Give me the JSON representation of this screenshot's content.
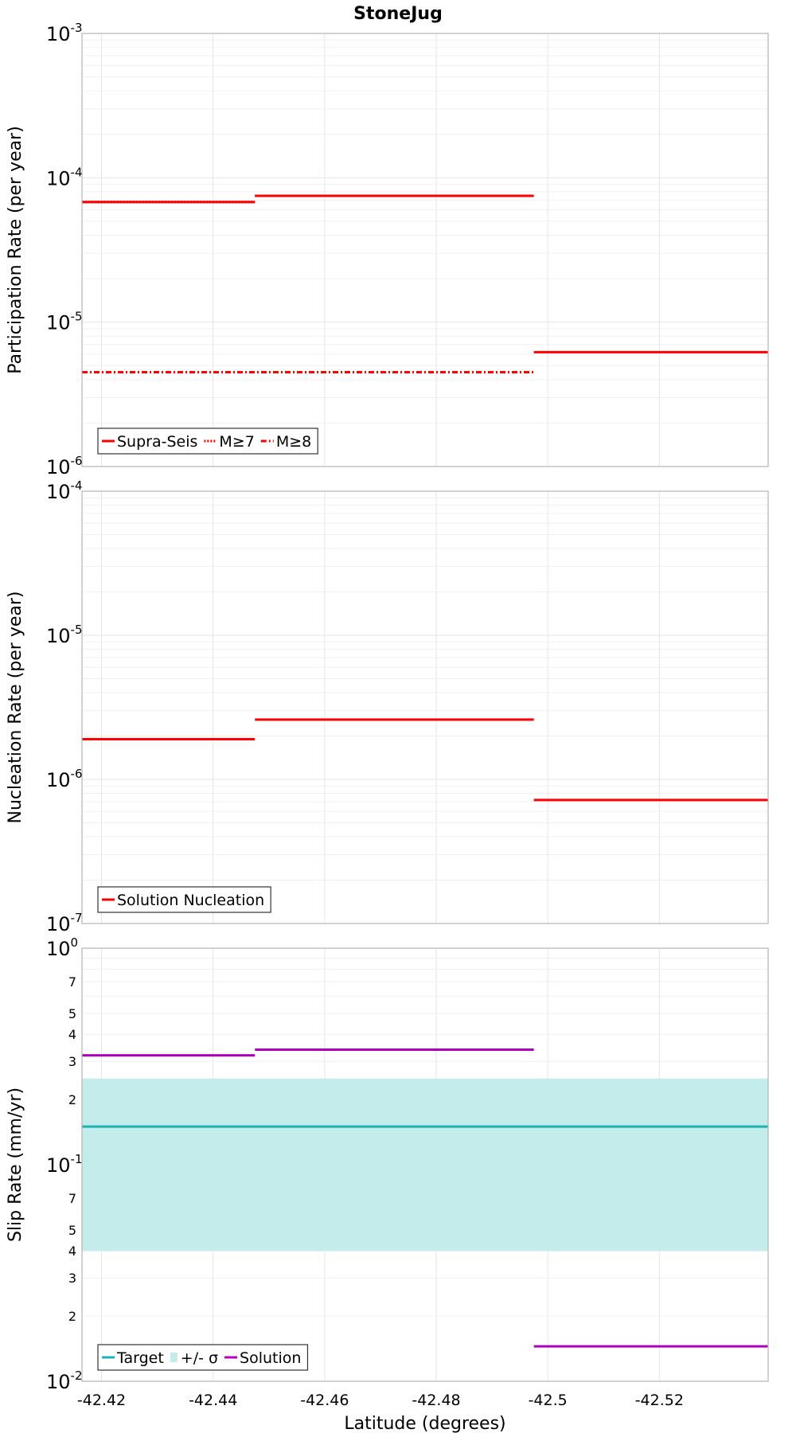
{
  "title": "StoneJug",
  "colors": {
    "red": "#ff0000",
    "cyan": "#1cb5b5",
    "band": "#c4ecea",
    "purple": "#b000b8"
  },
  "chart_data": [
    {
      "type": "line",
      "ylabel": "Participation Rate (per year)",
      "yscale": "log",
      "ylim": [
        1e-06,
        0.001
      ],
      "xlim": [
        -42.4165,
        -42.5395
      ],
      "x_reversed": true,
      "grid": true,
      "legend_position": "bottom-left",
      "yticks": [
        {
          "value": 1e-06,
          "base": "10",
          "exp": "-6"
        },
        {
          "value": 1e-05,
          "base": "10",
          "exp": "-5"
        },
        {
          "value": 0.0001,
          "base": "10",
          "exp": "-4"
        },
        {
          "value": 0.001,
          "base": "10",
          "exp": "-3"
        }
      ],
      "series": [
        {
          "name": "Supra-Seis",
          "style": "solid",
          "color": "#ff0000",
          "segments": [
            {
              "x": [
                -42.4165,
                -42.4475
              ],
              "y": 6.8e-05
            },
            {
              "x": [
                -42.4475,
                -42.4975
              ],
              "y": 7.5e-05
            },
            {
              "x": [
                -42.4975,
                -42.5395
              ],
              "y": 6.2e-06
            }
          ]
        },
        {
          "name": "M≥7",
          "style": "dotted",
          "color": "#ff0000",
          "segments": [
            {
              "x": [
                -42.4165,
                -42.4475
              ],
              "y": 6.8e-05
            },
            {
              "x": [
                -42.4475,
                -42.4975
              ],
              "y": 7.5e-05
            }
          ]
        },
        {
          "name": "M≥8",
          "style": "dashdot",
          "color": "#ff0000",
          "segments": [
            {
              "x": [
                -42.4165,
                -42.4975
              ],
              "y": 4.5e-06
            }
          ]
        }
      ]
    },
    {
      "type": "line",
      "ylabel": "Nucleation Rate (per year)",
      "yscale": "log",
      "ylim": [
        1e-07,
        0.0001
      ],
      "xlim": [
        -42.4165,
        -42.5395
      ],
      "x_reversed": true,
      "grid": true,
      "legend_position": "bottom-left",
      "yticks": [
        {
          "value": 1e-07,
          "base": "10",
          "exp": "-7"
        },
        {
          "value": 1e-06,
          "base": "10",
          "exp": "-6"
        },
        {
          "value": 1e-05,
          "base": "10",
          "exp": "-5"
        },
        {
          "value": 0.0001,
          "base": "10",
          "exp": "-4"
        }
      ],
      "series": [
        {
          "name": "Solution Nucleation",
          "style": "solid",
          "color": "#ff0000",
          "segments": [
            {
              "x": [
                -42.4165,
                -42.4475
              ],
              "y": 1.9e-06
            },
            {
              "x": [
                -42.4475,
                -42.4975
              ],
              "y": 2.6e-06
            },
            {
              "x": [
                -42.4975,
                -42.5395
              ],
              "y": 7.2e-07
            }
          ]
        }
      ]
    },
    {
      "type": "line",
      "ylabel": "Slip Rate (mm/yr)",
      "xlabel": "Latitude (degrees)",
      "yscale": "log",
      "ylim": [
        0.01,
        1
      ],
      "xlim": [
        -42.4165,
        -42.5395
      ],
      "x_reversed": true,
      "grid": true,
      "legend_position": "bottom-left",
      "yticks": [
        {
          "value": 0.01,
          "base": "10",
          "exp": "-2"
        },
        {
          "value": 0.1,
          "base": "10",
          "exp": "-1"
        },
        {
          "value": 1,
          "base": "10",
          "exp": "0"
        }
      ],
      "yminor_labels": [
        {
          "value": 0.02,
          "label": "2"
        },
        {
          "value": 0.03,
          "label": "3"
        },
        {
          "value": 0.04,
          "label": "4"
        },
        {
          "value": 0.05,
          "label": "5"
        },
        {
          "value": 0.07,
          "label": "7"
        },
        {
          "value": 0.2,
          "label": "2"
        },
        {
          "value": 0.3,
          "label": "3"
        },
        {
          "value": 0.4,
          "label": "4"
        },
        {
          "value": 0.5,
          "label": "5"
        },
        {
          "value": 0.7,
          "label": "7"
        }
      ],
      "xticks": [
        {
          "value": -42.42,
          "label": "-42.42"
        },
        {
          "value": -42.44,
          "label": "-42.44"
        },
        {
          "value": -42.46,
          "label": "-42.46"
        },
        {
          "value": -42.48,
          "label": "-42.48"
        },
        {
          "value": -42.5,
          "label": "-42.5"
        },
        {
          "value": -42.52,
          "label": "-42.52"
        }
      ],
      "band": {
        "name": "+/- σ",
        "color": "#c4ecea",
        "y_low": 0.04,
        "y_high": 0.25
      },
      "series": [
        {
          "name": "Target",
          "style": "solid",
          "color": "#1cb5b5",
          "segments": [
            {
              "x": [
                -42.4165,
                -42.5395
              ],
              "y": 0.15
            }
          ]
        },
        {
          "name": "+/- σ",
          "style": "band",
          "color": "#c4ecea",
          "segments": []
        },
        {
          "name": "Solution",
          "style": "solid",
          "color": "#b000b8",
          "segments": [
            {
              "x": [
                -42.4165,
                -42.4475
              ],
              "y": 0.32
            },
            {
              "x": [
                -42.4475,
                -42.4975
              ],
              "y": 0.34
            },
            {
              "x": [
                -42.4975,
                -42.5395
              ],
              "y": 0.0145
            }
          ]
        }
      ]
    }
  ]
}
